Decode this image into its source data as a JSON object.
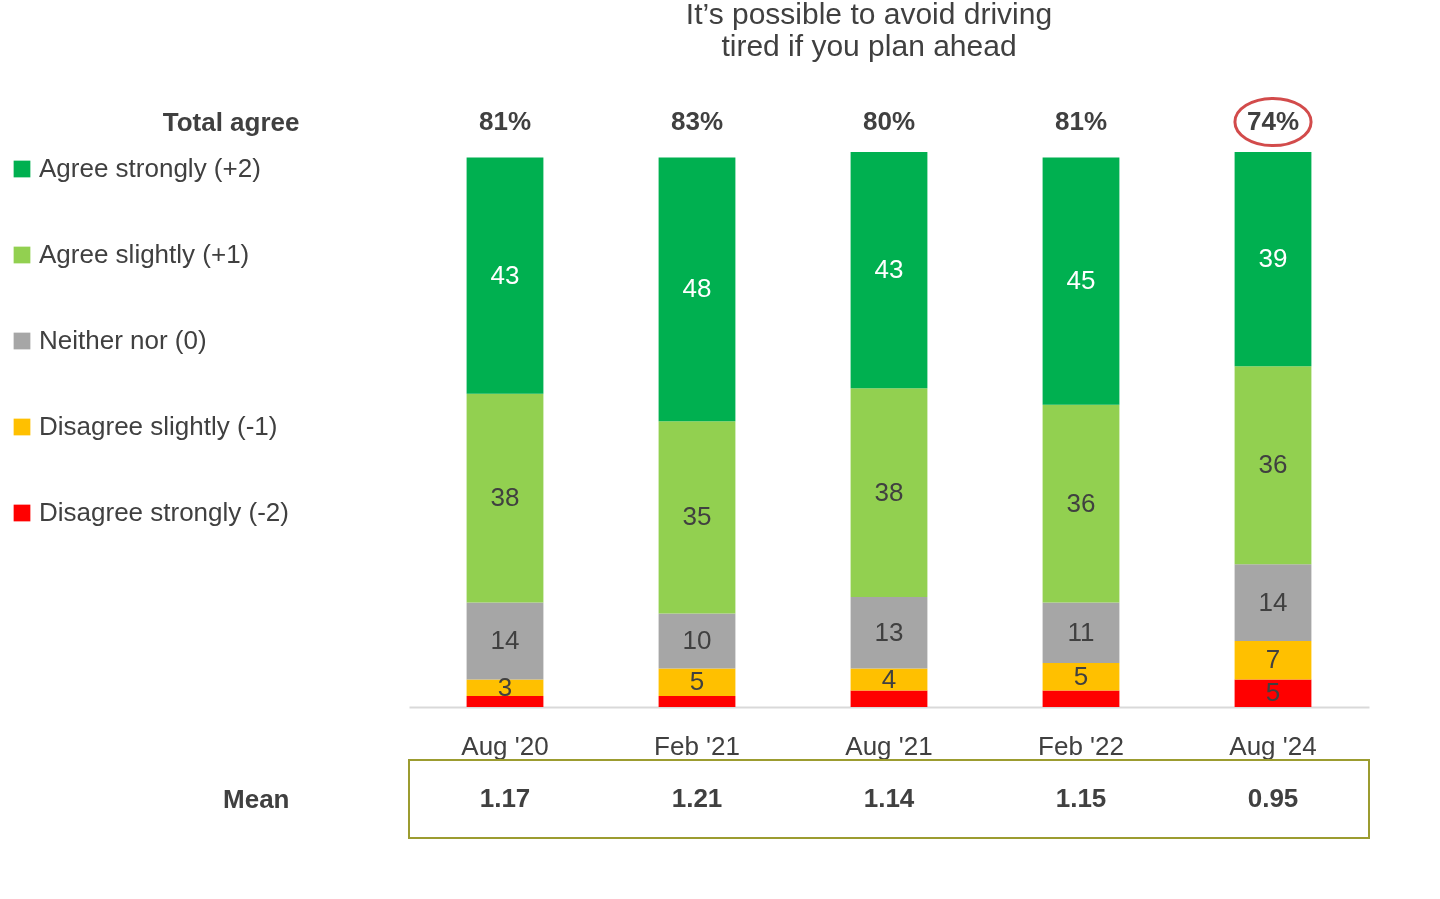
{
  "chart_data": {
    "type": "bar",
    "title": "It’s possible to avoid driving\ntired if you plan ahead",
    "stacked": true,
    "legend": "left",
    "grid": false,
    "categories": [
      "Aug '20",
      "Feb '21",
      "Aug '21",
      "Feb '22",
      "Aug '24"
    ],
    "series": [
      {
        "name": "Disagree strongly (-2)",
        "color": "#ff0000",
        "values": [
          2,
          2,
          3,
          3,
          5
        ],
        "value_labels": [
          null,
          null,
          null,
          null,
          "5"
        ]
      },
      {
        "name": "Disagree slightly (-1)",
        "color": "#ffc000",
        "values": [
          3,
          5,
          4,
          5,
          7
        ],
        "value_labels": [
          "3",
          "5",
          "4",
          "5",
          "7"
        ]
      },
      {
        "name": "Neither nor (0)",
        "color": "#a6a6a6",
        "values": [
          14,
          10,
          13,
          11,
          14
        ],
        "value_labels": [
          "14",
          "10",
          "13",
          "11",
          "14"
        ]
      },
      {
        "name": "Agree slightly (+1)",
        "color": "#92d050",
        "values": [
          38,
          35,
          38,
          36,
          36
        ],
        "value_labels": [
          "38",
          "35",
          "38",
          "36",
          "36"
        ]
      },
      {
        "name": "Agree strongly (+2)",
        "color": "#00b050",
        "values": [
          43,
          48,
          43,
          45,
          39
        ],
        "value_labels": [
          "43",
          "48",
          "43",
          "45",
          "39"
        ]
      }
    ],
    "annotations": [
      "Total agree",
      "81%",
      "83%",
      "80%",
      "81%",
      "74%",
      "Mean",
      "1.17",
      "1.21",
      "1.14",
      "1.15",
      "0.95"
    ]
  }
}
